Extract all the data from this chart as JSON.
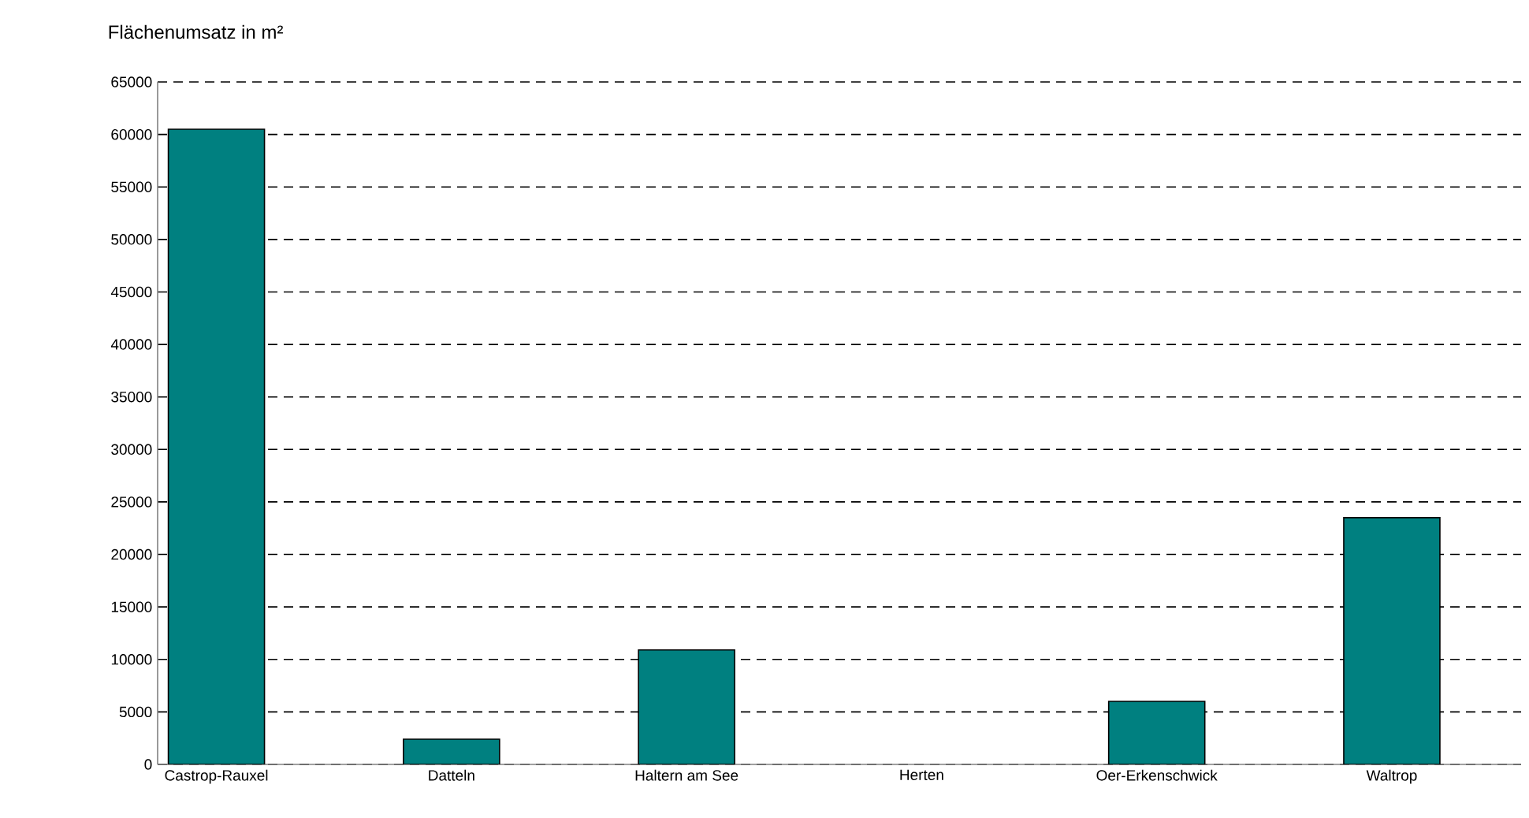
{
  "chart_data": {
    "type": "bar",
    "ylabel": "Flächenumsatz in m²",
    "categories": [
      "Castrop-Rauxel",
      "Datteln",
      "Haltern am See",
      "Herten",
      "Oer-Erkenschwick",
      "Waltrop"
    ],
    "values": [
      60500,
      2400,
      10900,
      null,
      6000,
      23500
    ],
    "color": "#008080",
    "ylim": [
      0,
      65000
    ],
    "yticks": [
      0,
      5000,
      10000,
      15000,
      20000,
      25000,
      30000,
      35000,
      40000,
      45000,
      50000,
      55000,
      60000,
      65000
    ],
    "grid": "y"
  }
}
